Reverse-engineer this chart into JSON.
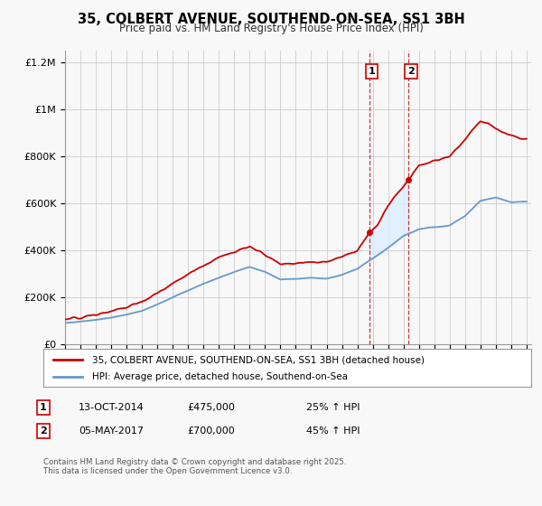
{
  "title": "35, COLBERT AVENUE, SOUTHEND-ON-SEA, SS1 3BH",
  "subtitle": "Price paid vs. HM Land Registry's House Price Index (HPI)",
  "footer": "Contains HM Land Registry data © Crown copyright and database right 2025.\nThis data is licensed under the Open Government Licence v3.0.",
  "legend_line1": "35, COLBERT AVENUE, SOUTHEND-ON-SEA, SS1 3BH (detached house)",
  "legend_line2": "HPI: Average price, detached house, Southend-on-Sea",
  "marker1_date": "13-OCT-2014",
  "marker1_price": "£475,000",
  "marker1_hpi": "25% ↑ HPI",
  "marker2_date": "05-MAY-2017",
  "marker2_price": "£700,000",
  "marker2_hpi": "45% ↑ HPI",
  "property_color": "#cc0000",
  "hpi_color": "#6699cc",
  "shade_color": "#ddeeff",
  "background_color": "#f8f8f8",
  "grid_color": "#cccccc",
  "ylim": [
    0,
    1250000
  ],
  "yticks": [
    0,
    200000,
    400000,
    600000,
    800000,
    1000000,
    1200000
  ],
  "ytick_labels": [
    "£0",
    "£200K",
    "£400K",
    "£600K",
    "£800K",
    "£1M",
    "£1.2M"
  ],
  "marker1_year": 2014.79,
  "marker2_year": 2017.34,
  "marker1_val": 475000,
  "marker2_val": 700000,
  "hpi_anchor_years": [
    1995,
    1996,
    1997,
    1998,
    1999,
    2000,
    2001,
    2002,
    2003,
    2004,
    2005,
    2006,
    2007,
    2008,
    2009,
    2010,
    2011,
    2012,
    2013,
    2014,
    2015,
    2016,
    2017,
    2018,
    2019,
    2020,
    2021,
    2022,
    2023,
    2024,
    2025
  ],
  "hpi_anchor_vals": [
    90000,
    95000,
    103000,
    112000,
    125000,
    142000,
    168000,
    200000,
    228000,
    258000,
    283000,
    307000,
    328000,
    308000,
    275000,
    278000,
    283000,
    278000,
    295000,
    320000,
    365000,
    410000,
    460000,
    490000,
    498000,
    505000,
    545000,
    610000,
    625000,
    605000,
    608000
  ],
  "prop_anchor_years": [
    1995,
    1996,
    1997,
    1998,
    1999,
    2000,
    2001,
    2002,
    2003,
    2004,
    2005,
    2006,
    2007,
    2008,
    2009,
    2010,
    2011,
    2012,
    2013,
    2014.0,
    2014.79,
    2015.3,
    2016.0,
    2017.34,
    2018.0,
    2019.0,
    2020.0,
    2021.0,
    2022.0,
    2022.5,
    2023.0,
    2023.5,
    2024.0,
    2024.5,
    2025.0
  ],
  "prop_anchor_vals": [
    110000,
    113000,
    125000,
    140000,
    158000,
    180000,
    215000,
    258000,
    295000,
    335000,
    368000,
    392000,
    415000,
    380000,
    340000,
    345000,
    352000,
    348000,
    370000,
    400000,
    475000,
    510000,
    590000,
    700000,
    760000,
    780000,
    800000,
    870000,
    950000,
    940000,
    920000,
    905000,
    890000,
    875000,
    870000
  ]
}
